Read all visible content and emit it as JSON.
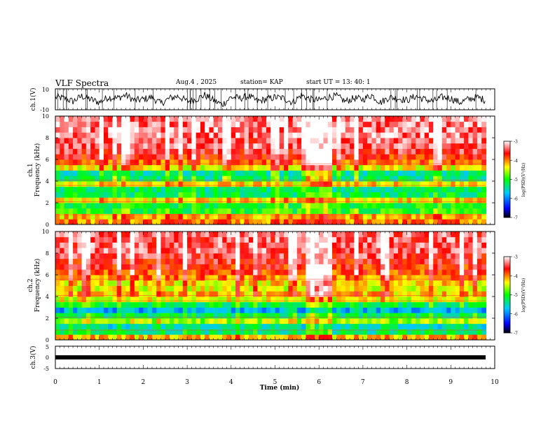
{
  "header": {
    "title": "VLF Spectra",
    "date": "Aug.4 , 2025",
    "station": "station= KAP",
    "start_ut": "start UT = 13: 40: 1"
  },
  "chart_data": [
    {
      "type": "line",
      "id": "ch1_waveform",
      "ylabel": "ch.1(V)",
      "ylim": [
        -10,
        10
      ],
      "yticks": [
        "10",
        "-10"
      ],
      "xlim": [
        0,
        9.8
      ],
      "x": [
        0,
        0.2,
        0.4,
        0.6,
        0.8,
        1.0,
        1.2,
        1.4,
        1.6,
        1.8,
        2.0,
        2.2,
        2.4,
        2.6,
        2.8,
        3.0,
        3.2,
        3.4,
        3.6,
        3.8,
        4.0,
        4.2,
        4.4,
        4.6,
        4.8,
        5.0,
        5.2,
        5.4,
        5.6,
        5.8,
        6.0,
        6.2,
        6.4,
        6.6,
        6.8,
        7.0,
        7.2,
        7.4,
        7.6,
        7.8,
        8.0,
        8.2,
        8.4,
        8.6,
        8.8,
        9.0,
        9.2,
        9.4,
        9.6,
        9.8
      ],
      "y": [
        2,
        1,
        -2,
        3,
        0,
        -3,
        2,
        1,
        4,
        -1,
        0,
        2,
        -4,
        1,
        3,
        -2,
        0,
        4,
        -1,
        -5,
        2,
        1,
        3,
        -2,
        0,
        2,
        1,
        -3,
        4,
        0,
        -1,
        2,
        3,
        -2,
        1,
        0,
        4,
        -3,
        2,
        1,
        -1,
        3,
        0,
        -2,
        2,
        1,
        -3,
        0,
        2,
        -1
      ]
    },
    {
      "type": "heatmap",
      "id": "ch1_spectrogram",
      "ylabel": "ch.1\nFrequency (kHz)",
      "ylim": [
        0,
        10
      ],
      "yticks": [
        "0",
        "2",
        "4",
        "6",
        "8",
        "10"
      ],
      "xlim": [
        0,
        9.8
      ],
      "freq_kHz": [
        0.25,
        0.75,
        1.25,
        1.75,
        2.25,
        2.75,
        3.25,
        3.75,
        4.25,
        4.75,
        5.25,
        5.75,
        6.25,
        6.75,
        7.25,
        7.75,
        8.25,
        8.75,
        9.25,
        9.75
      ],
      "log_psd_profile": [
        -4.0,
        -4.2,
        -5.0,
        -5.1,
        -4.3,
        -5.2,
        -5.3,
        -4.3,
        -5.3,
        -5.4,
        -4.4,
        -3.9,
        -3.7,
        -3.5,
        -3.4,
        -3.4,
        -3.3,
        -3.3,
        -3.3,
        -3.3
      ],
      "event": {
        "t_start": 5.7,
        "t_end": 6.3
      }
    },
    {
      "type": "heatmap",
      "id": "ch2_spectrogram",
      "ylabel": "ch.2\nFrequency (kHz)",
      "ylim": [
        0,
        10
      ],
      "yticks": [
        "0",
        "2",
        "4",
        "6",
        "8",
        "10"
      ],
      "xlim": [
        0,
        9.8
      ],
      "freq_kHz": [
        0.25,
        0.75,
        1.25,
        1.75,
        2.25,
        2.75,
        3.25,
        3.75,
        4.25,
        4.75,
        5.25,
        5.75,
        6.25,
        6.75,
        7.25,
        7.75,
        8.25,
        8.75,
        9.25,
        9.75
      ],
      "log_psd_profile": [
        -4.2,
        -5.3,
        -5.5,
        -4.6,
        -5.2,
        -5.8,
        -5.2,
        -4.4,
        -4.2,
        -4.4,
        -4.3,
        -4.0,
        -3.8,
        -3.7,
        -3.6,
        -3.5,
        -3.4,
        -3.4,
        -3.4,
        -3.4
      ],
      "event": {
        "t_start": 5.7,
        "t_end": 6.3
      }
    },
    {
      "type": "line",
      "id": "ch3_waveform",
      "ylabel": "ch.3(V)",
      "ylim": [
        -5,
        5
      ],
      "yticks": [
        "5",
        "0",
        "-5"
      ],
      "xlim": [
        0,
        9.8
      ],
      "x": [
        0,
        9.8
      ],
      "y": [
        0,
        0
      ]
    }
  ],
  "colorbar": {
    "label": "log(PSD)(V²/Hz)",
    "range": [
      -7,
      -3
    ],
    "ticks": [
      "-3",
      "-4",
      "-5",
      "-6",
      "-7"
    ],
    "colors": [
      "#000000",
      "#0000ff",
      "#00c8ff",
      "#00ff00",
      "#ffff00",
      "#ff0000",
      "#ffffff"
    ]
  },
  "xaxis": {
    "label": "Time (min)",
    "range": [
      0,
      10
    ],
    "ticks": [
      "0",
      "1",
      "2",
      "3",
      "4",
      "5",
      "6",
      "7",
      "8",
      "9",
      "10"
    ]
  }
}
